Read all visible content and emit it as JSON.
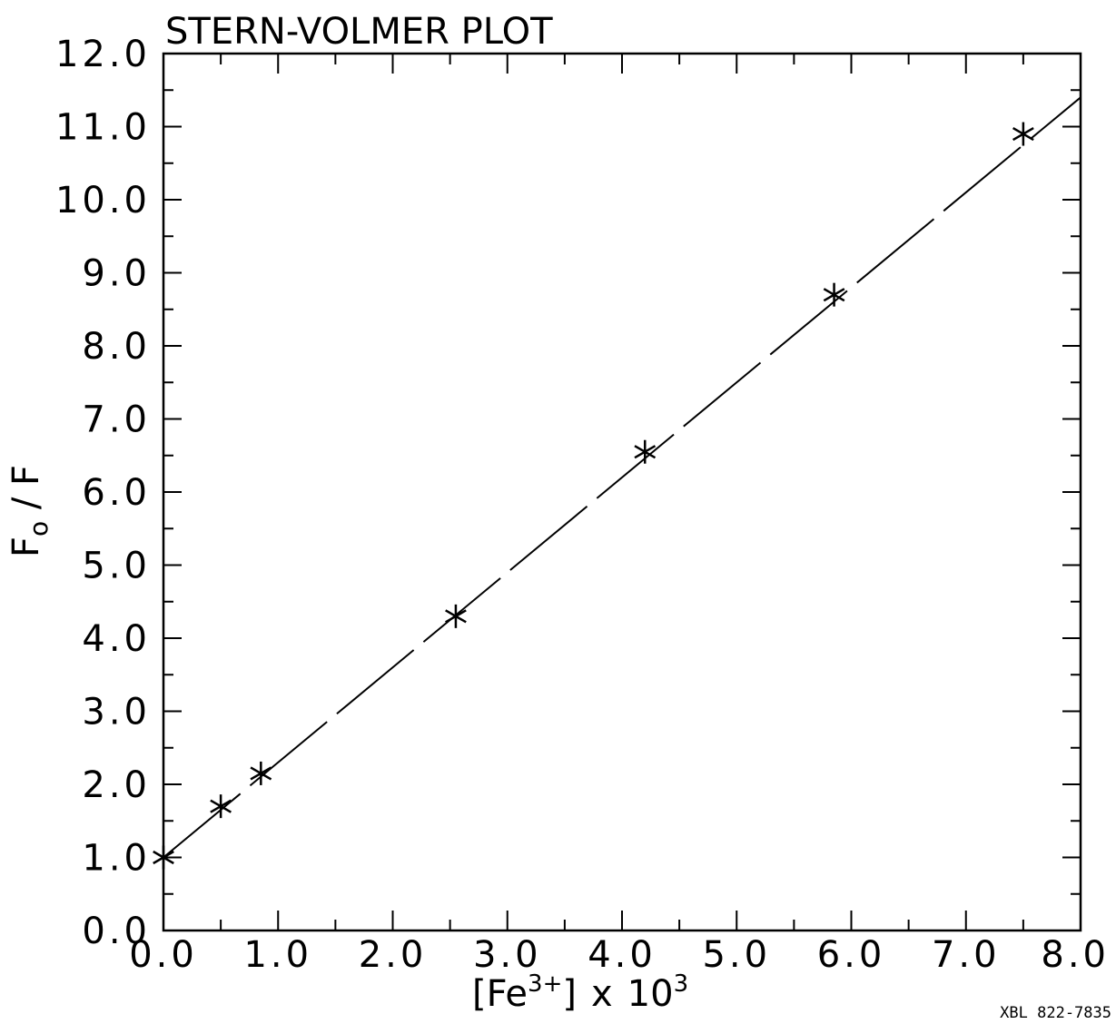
{
  "chart_data": {
    "type": "scatter",
    "title": "STERN-VOLMER PLOT",
    "xlabel": {
      "base": "[Fe",
      "sup": "3+",
      "close": "]",
      "times": "x",
      "ten": "10",
      "exp": "3"
    },
    "ylabel": {
      "main": "F",
      "sub": "o",
      "rest": " / F"
    },
    "xlim": [
      0,
      8
    ],
    "ylim": [
      0,
      12
    ],
    "x_ticks": [
      "0.0",
      "1.0",
      "2.0",
      "3.0",
      "4.0",
      "5.0",
      "6.0",
      "7.0",
      "8.0"
    ],
    "y_ticks": [
      "0.0",
      "1.0",
      "2.0",
      "3.0",
      "4.0",
      "5.0",
      "6.0",
      "7.0",
      "8.0",
      "9.0",
      "10.0",
      "11.0",
      "12.0"
    ],
    "series": [
      {
        "marker": "asterisk",
        "x": [
          0.0,
          0.5,
          0.85,
          2.55,
          4.2,
          5.85,
          7.5
        ],
        "y": [
          1.0,
          1.7,
          2.15,
          4.3,
          6.55,
          8.7,
          10.9
        ]
      }
    ],
    "fit_line": {
      "x": [
        0.0,
        8.0
      ],
      "y": [
        1.0,
        11.4
      ],
      "style": "long-dash"
    },
    "grid": false,
    "footnote": "XBL 822-7835"
  }
}
